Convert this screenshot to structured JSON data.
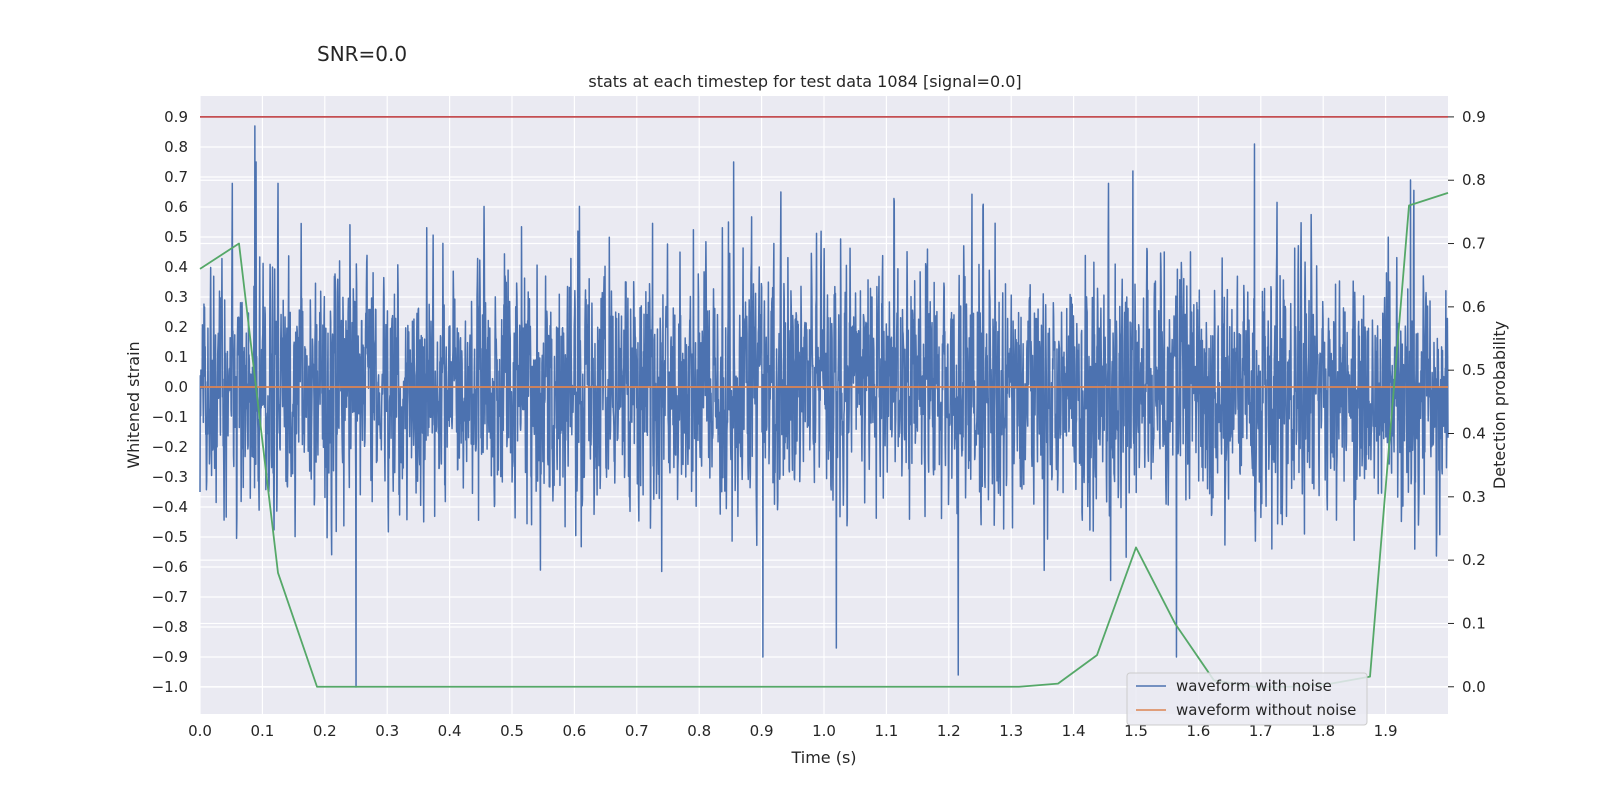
{
  "suptitle": "SNR=0.0",
  "chart_data": {
    "type": "line",
    "title": "stats at each timestep for test data 1084 [signal=0.0]",
    "xlabel": "Time (s)",
    "ylabel": "Whitened strain",
    "y2label": "Detection probability",
    "xlim": [
      0.0,
      2.0
    ],
    "ylim": [
      -1.09,
      0.97
    ],
    "y2lim": [
      -0.043,
      0.933
    ],
    "xticks": [
      "0.0",
      "0.1",
      "0.2",
      "0.3",
      "0.4",
      "0.5",
      "0.6",
      "0.7",
      "0.8",
      "0.9",
      "1.0",
      "1.1",
      "1.2",
      "1.3",
      "1.4",
      "1.5",
      "1.6",
      "1.7",
      "1.8",
      "1.9"
    ],
    "yticks": [
      "−1.0",
      "−0.9",
      "−0.8",
      "−0.7",
      "−0.6",
      "−0.5",
      "−0.4",
      "−0.3",
      "−0.2",
      "−0.1",
      "0.0",
      "0.1",
      "0.2",
      "0.3",
      "0.4",
      "0.5",
      "0.6",
      "0.7",
      "0.8",
      "0.9"
    ],
    "y2ticks": [
      "0.0",
      "0.1",
      "0.2",
      "0.3",
      "0.4",
      "0.5",
      "0.6",
      "0.7",
      "0.8",
      "0.9"
    ],
    "grid": true,
    "legend_position": "lower-right",
    "series": [
      {
        "name": "waveform with noise",
        "axis": "left",
        "color": "#4c72b0",
        "kind": "noise",
        "n_samples": 4096,
        "amplitude_range": [
          -1.0,
          0.87
        ],
        "peaks": [
          {
            "x": 0.088,
            "y": 0.87
          },
          {
            "x": 0.09,
            "y": 0.75
          },
          {
            "x": 0.25,
            "y": -1.0
          },
          {
            "x": 0.855,
            "y": 0.75
          },
          {
            "x": 0.902,
            "y": -0.9
          },
          {
            "x": 1.02,
            "y": -0.87
          },
          {
            "x": 1.215,
            "y": -0.96
          },
          {
            "x": 1.495,
            "y": 0.72
          },
          {
            "x": 1.565,
            "y": -0.9
          },
          {
            "x": 1.69,
            "y": 0.81
          },
          {
            "x": 1.94,
            "y": 0.69
          }
        ]
      },
      {
        "name": "waveform without noise",
        "axis": "left",
        "color": "#dd8452",
        "x": [
          0.0,
          2.0
        ],
        "y": [
          0.0,
          0.0
        ]
      },
      {
        "name": "",
        "axis": "right",
        "color": "#55a868",
        "x": [
          0.0,
          0.0625,
          0.125,
          0.1875,
          0.25,
          0.3125,
          0.375,
          0.4375,
          0.5,
          0.5625,
          0.625,
          0.6875,
          0.75,
          0.8125,
          0.875,
          0.9375,
          1.0,
          1.0625,
          1.125,
          1.1875,
          1.25,
          1.3125,
          1.375,
          1.4375,
          1.5,
          1.5625,
          1.625,
          1.6875,
          1.75,
          1.8125,
          1.875,
          1.9375,
          2.0
        ],
        "y": [
          0.66,
          0.7,
          0.18,
          0.0,
          0.0,
          0.0,
          0.0,
          0.0,
          0.0,
          0.0,
          0.0,
          0.0,
          0.0,
          0.0,
          0.0,
          0.0,
          0.0,
          0.0,
          0.0,
          0.0,
          0.0,
          0.0,
          0.005,
          0.05,
          0.22,
          0.1,
          0.01,
          0.0,
          0.0,
          0.005,
          0.016,
          0.76,
          0.78
        ]
      },
      {
        "name": "",
        "axis": "right",
        "color": "#c44e52",
        "x": [
          0.0,
          2.0
        ],
        "y": [
          0.9,
          0.9
        ]
      }
    ]
  }
}
